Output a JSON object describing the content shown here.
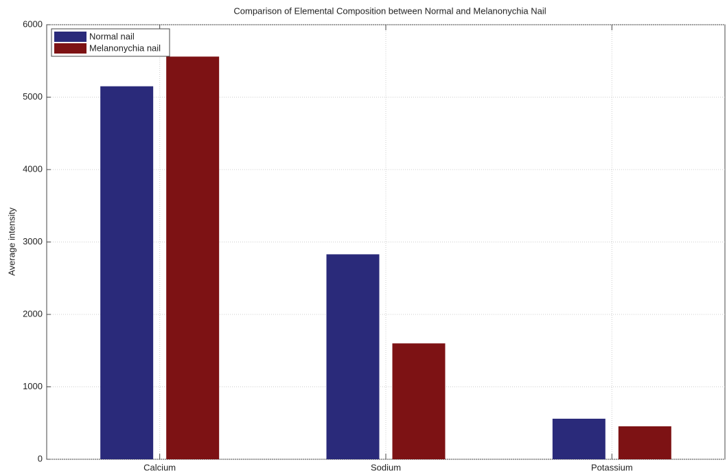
{
  "chart_data": {
    "type": "bar",
    "title": "Comparison of Elemental Composition between Normal and Melanonychia Nail",
    "y_label": "Average intensity",
    "categories": [
      "Calcium",
      "Sodium",
      "Potassium"
    ],
    "series": [
      {
        "name": "Normal nail",
        "color": "#2a2a7a",
        "values": [
          5150,
          2830,
          560
        ]
      },
      {
        "name": "Melanonychia nail",
        "color": "#7d1214",
        "values": [
          5560,
          1600,
          455
        ]
      }
    ],
    "ylim": [
      0,
      6000
    ],
    "yticks": [
      0,
      1000,
      2000,
      3000,
      4000,
      5000,
      6000
    ],
    "grid": true,
    "legend": "upper left"
  }
}
